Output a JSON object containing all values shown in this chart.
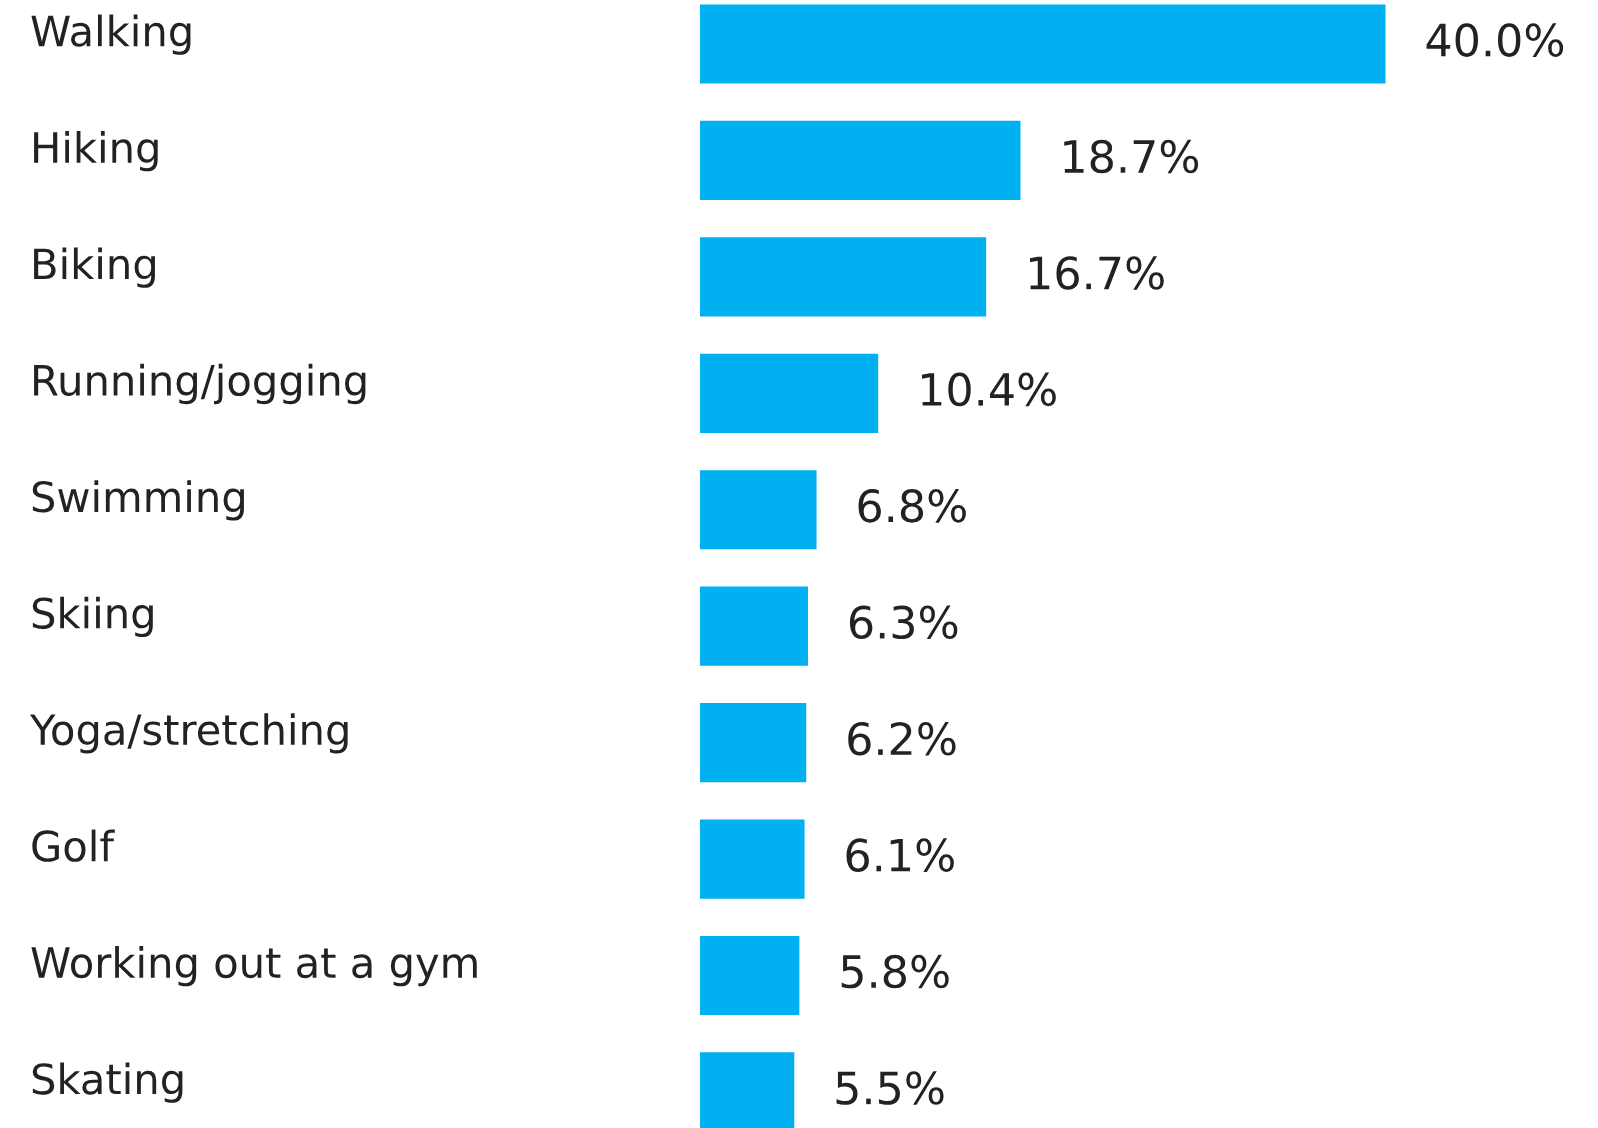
{
  "chart_data": {
    "type": "bar",
    "orientation": "horizontal",
    "categories": [
      "Walking",
      "Hiking",
      "Biking",
      "Running/jogging",
      "Swimming",
      "Skiing",
      "Yoga/stretching",
      "Golf",
      "Working out at a gym",
      "Skating"
    ],
    "values": [
      40.0,
      18.7,
      16.7,
      10.4,
      6.8,
      6.3,
      6.2,
      6.1,
      5.8,
      5.5
    ],
    "value_labels": [
      "40.0%",
      "18.7%",
      "16.7%",
      "10.4%",
      "6.8%",
      "6.3%",
      "6.2%",
      "6.1%",
      "5.8%",
      "5.5%"
    ],
    "color": "#00b0f0",
    "tick_labels": false
  }
}
